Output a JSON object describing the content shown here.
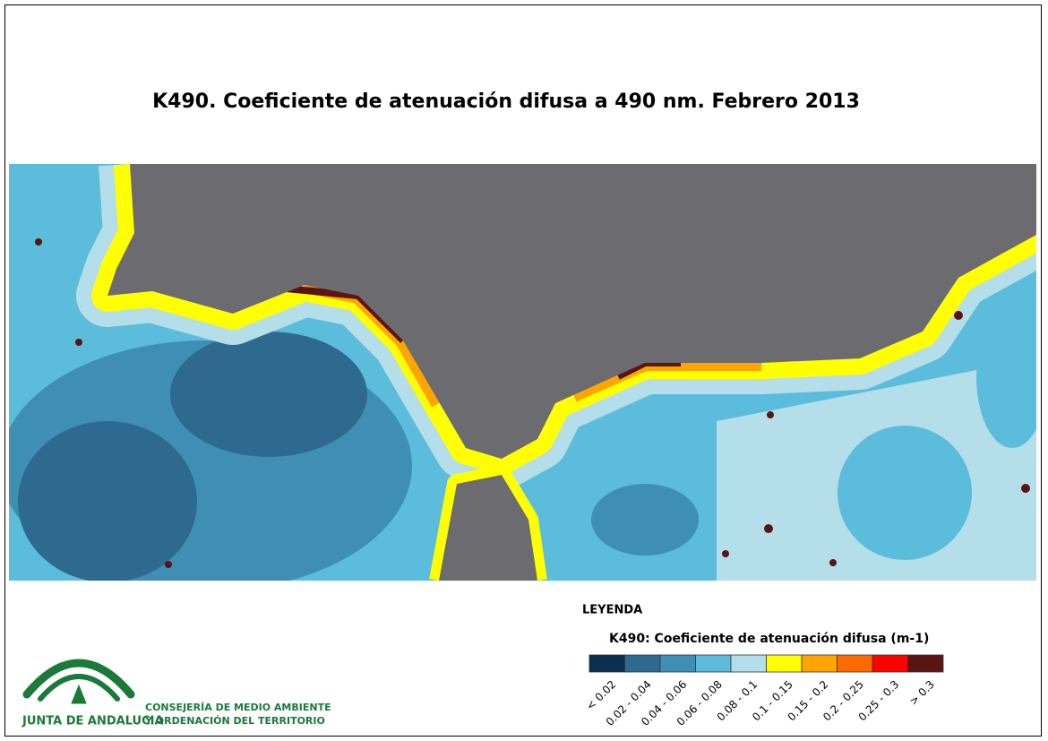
{
  "title": "K490. Coeficiente de atenuación difusa a 490 nm. Febrero 2013",
  "legend": {
    "heading": "LEYENDA",
    "subtitle": "K490: Coeficiente de atenuación difusa (m-1)",
    "classes": [
      {
        "label": "< 0.02",
        "color": "#0b2f4e"
      },
      {
        "label": "0.02 - 0.04",
        "color": "#2e6a90"
      },
      {
        "label": "0.04 - 0.06",
        "color": "#3f8fb5"
      },
      {
        "label": "0.06 - 0.08",
        "color": "#5bbcdc"
      },
      {
        "label": "0.08 - 0.1",
        "color": "#b3deea"
      },
      {
        "label": "0.1 - 0.15",
        "color": "#ffff00"
      },
      {
        "label": "0.15 - 0.2",
        "color": "#ffa500"
      },
      {
        "label": "0.2 - 0.25",
        "color": "#ff6a00"
      },
      {
        "label": "0.25 - 0.3",
        "color": "#ff0000"
      },
      {
        "label": "> 0.3",
        "color": "#5a1414"
      }
    ]
  },
  "logo": {
    "name": "JUNTA DE ANDALUCIA",
    "department": [
      "CONSEJERÍA DE MEDIO AMBIENTE",
      "Y ORDENACIÓN DEL TERRITORIO"
    ]
  }
}
